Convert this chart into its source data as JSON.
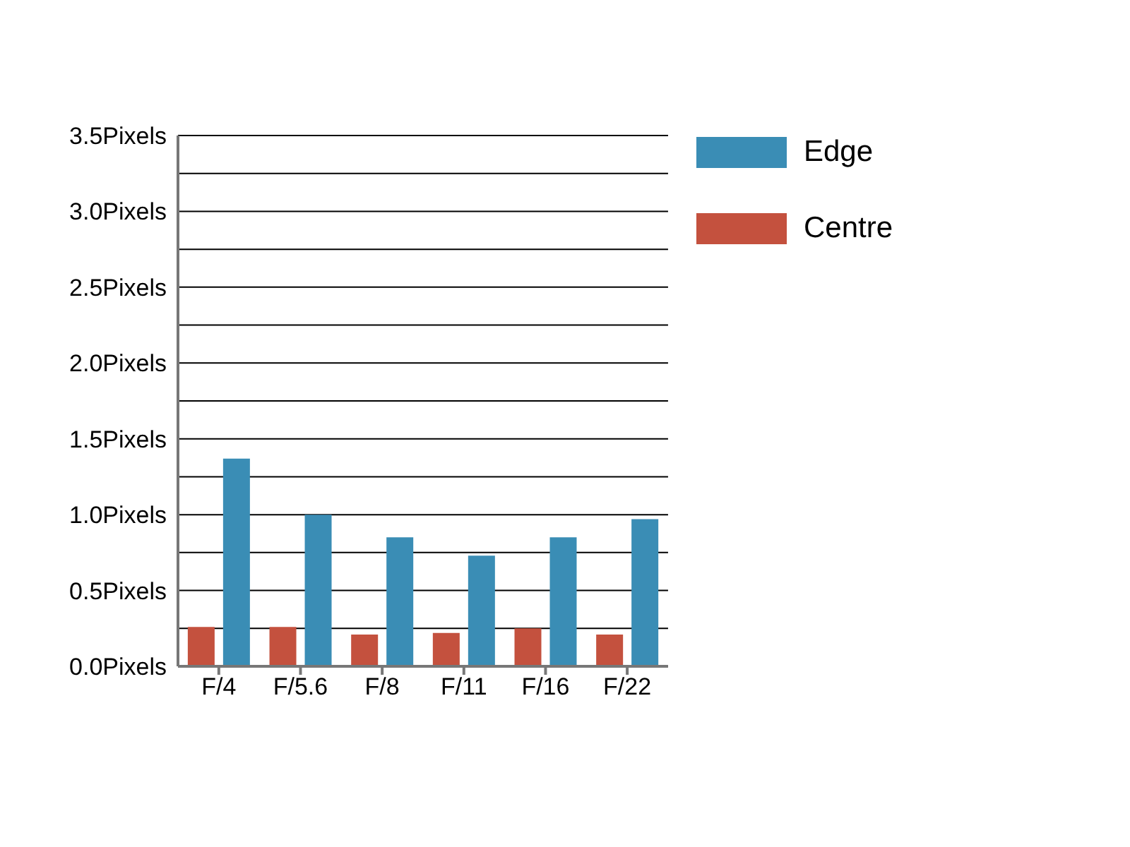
{
  "chart_data": {
    "type": "bar",
    "categories": [
      "F/4",
      "F/5.6",
      "F/8",
      "F/11",
      "F/16",
      "F/22"
    ],
    "series": [
      {
        "name": "Centre",
        "color": "#c4513e",
        "values": [
          0.26,
          0.26,
          0.21,
          0.22,
          0.25,
          0.21
        ]
      },
      {
        "name": "Edge",
        "color": "#3a8db5",
        "values": [
          1.37,
          1.0,
          0.85,
          0.73,
          0.85,
          0.97
        ]
      }
    ],
    "ylim": [
      0,
      3.5
    ],
    "yticks": [
      {
        "value": 0,
        "label": "0.0Pixels"
      },
      {
        "value": 0.25,
        "label": null
      },
      {
        "value": 0.5,
        "label": "0.5Pixels"
      },
      {
        "value": 0.75,
        "label": null
      },
      {
        "value": 1,
        "label": "1.0Pixels"
      },
      {
        "value": 1.25,
        "label": null
      },
      {
        "value": 1.5,
        "label": "1.5Pixels"
      },
      {
        "value": 1.75,
        "label": null
      },
      {
        "value": 2,
        "label": "2.0Pixels"
      },
      {
        "value": 2.25,
        "label": null
      },
      {
        "value": 2.5,
        "label": "2.5Pixels"
      },
      {
        "value": 2.75,
        "label": null
      },
      {
        "value": 3,
        "label": "3.0Pixels"
      },
      {
        "value": 3.25,
        "label": null
      },
      {
        "value": 3.5,
        "label": "3.5Pixels"
      }
    ],
    "grid": "y",
    "legend": "top right"
  }
}
